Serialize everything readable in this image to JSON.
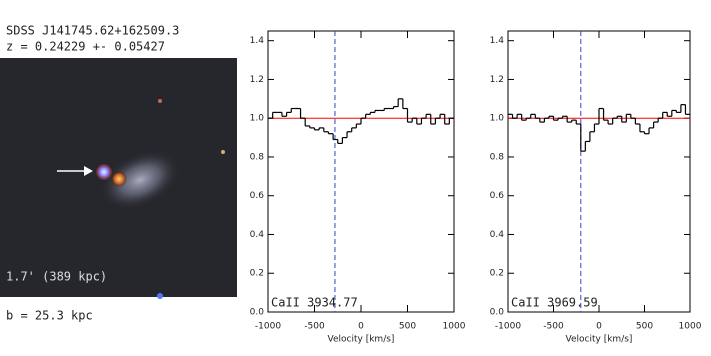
{
  "header": {
    "object": "SDSS J141745.62+162509.3",
    "redshift": "z = 0.24229 +- 0.05427"
  },
  "image": {
    "scale_label": "1.7' (389 kpc)",
    "impact_parameter": "b = 25.3 kpc"
  },
  "chart_data": [
    {
      "type": "step",
      "label": "CaII 3934.77",
      "xlabel": "Velocity [km/s]",
      "color": "#000000",
      "x": [
        -975,
        -925,
        -875,
        -825,
        -775,
        -725,
        -675,
        -625,
        -575,
        -525,
        -475,
        -425,
        -375,
        -325,
        -275,
        -225,
        -175,
        -125,
        -75,
        -25,
        25,
        75,
        125,
        175,
        225,
        275,
        325,
        375,
        425,
        475,
        525,
        575,
        625,
        675,
        725,
        775,
        825,
        875,
        925,
        975
      ],
      "values": [
        1.0,
        1.03,
        1.03,
        1.01,
        1.03,
        1.05,
        1.05,
        1.0,
        0.96,
        0.95,
        0.94,
        0.95,
        0.93,
        0.92,
        0.89,
        0.87,
        0.9,
        0.93,
        0.95,
        0.97,
        1.0,
        1.02,
        1.03,
        1.04,
        1.04,
        1.05,
        1.05,
        1.06,
        1.1,
        1.05,
        0.98,
        1.0,
        0.97,
        1.0,
        1.02,
        0.97,
        1.0,
        1.02,
        0.97,
        1.0
      ],
      "continuum": 1.0,
      "continuum_color": "#ff0000",
      "line_velocity": -280,
      "marker_color": "#3344cc",
      "xlim": [
        -1000,
        1000
      ],
      "xticks": [
        -1000,
        -500,
        0,
        500,
        1000
      ],
      "ylim": [
        0,
        1.45
      ],
      "yticks": [
        {
          "value": 0,
          "label": "0.0"
        },
        0.2,
        0.4,
        0.6,
        0.8,
        {
          "value": 1,
          "label": "1.0"
        },
        1.2,
        1.4
      ]
    },
    {
      "type": "step",
      "label": "CaII 3969.59",
      "xlabel": "Velocity [km/s]",
      "color": "#000000",
      "x": [
        -975,
        -925,
        -875,
        -825,
        -775,
        -725,
        -675,
        -625,
        -575,
        -525,
        -475,
        -425,
        -375,
        -325,
        -275,
        -225,
        -175,
        -125,
        -75,
        -25,
        25,
        75,
        125,
        175,
        225,
        275,
        325,
        375,
        425,
        475,
        525,
        575,
        625,
        675,
        725,
        775,
        825,
        875,
        925,
        975
      ],
      "values": [
        1.02,
        1.0,
        1.02,
        0.99,
        1.0,
        1.02,
        1.0,
        0.98,
        1.0,
        1.01,
        0.99,
        1.0,
        1.01,
        0.98,
        0.99,
        0.97,
        0.83,
        0.88,
        0.93,
        0.97,
        1.05,
        0.99,
        0.97,
        1.0,
        1.01,
        0.98,
        1.02,
        1.0,
        0.97,
        0.93,
        0.92,
        0.95,
        0.98,
        1.0,
        1.03,
        1.01,
        1.04,
        1.03,
        1.07,
        1.02
      ],
      "continuum": 1.0,
      "continuum_color": "#ff0000",
      "line_velocity": -200,
      "marker_color": "#3344cc",
      "xlim": [
        -1000,
        1000
      ],
      "xticks": [
        -1000,
        -500,
        0,
        500,
        1000
      ],
      "ylim": [
        0,
        1.45
      ],
      "yticks": [
        {
          "value": 0,
          "label": "0.0"
        },
        0.2,
        0.4,
        0.6,
        0.8,
        {
          "value": 1,
          "label": "1.0"
        },
        1.2,
        1.4
      ]
    }
  ]
}
